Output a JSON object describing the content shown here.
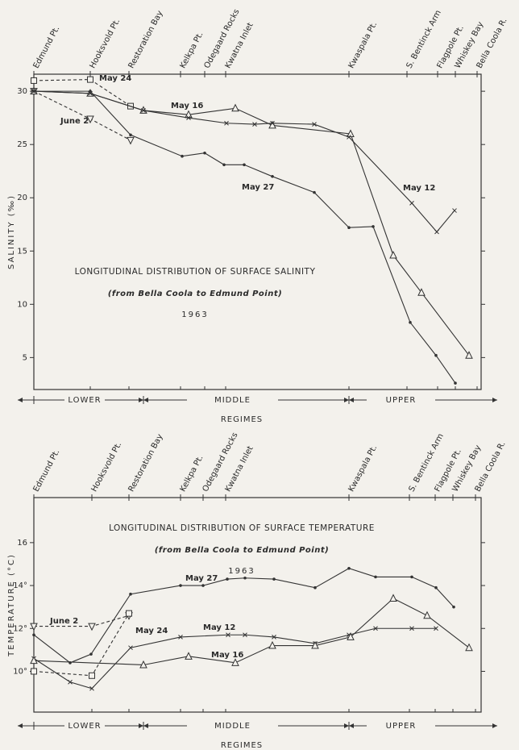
{
  "chart_data": [
    {
      "type": "line",
      "title": "LONGITUDINAL DISTRIBUTION OF SURFACE SALINITY",
      "subtitle": "(from Bella Coola to Edmund Point)",
      "annotation": "1963",
      "ylabel": "SALINITY (‰)",
      "regimes": [
        "LOWER",
        "MIDDLE",
        "UPPER"
      ],
      "regimes_label": "REGIMES",
      "xlim": [
        0,
        555
      ],
      "xticks": [
        {
          "value": 0,
          "label": "Edmund Pt."
        },
        {
          "value": 70,
          "label": "Hooksvold Pt."
        },
        {
          "value": 118,
          "label": "Restoration Bay"
        },
        {
          "value": 182,
          "label": "Kelkpa Pt."
        },
        {
          "value": 212,
          "label": "Odegaard Rocks"
        },
        {
          "value": 238,
          "label": "Kwatna Inlet"
        },
        {
          "value": 391,
          "label": "Kwaspala Pt."
        },
        {
          "value": 463,
          "label": "S. Bentinck Arm"
        },
        {
          "value": 501,
          "label": "Flagpole Pt."
        },
        {
          "value": 523,
          "label": "Whiskey Bay"
        },
        {
          "value": 550,
          "label": "Bella Coola R."
        }
      ],
      "ylim": [
        2,
        31.6
      ],
      "yticks": [
        5,
        10,
        15,
        20,
        25,
        30
      ],
      "series": [
        {
          "name": "May 24",
          "color": "#333333",
          "marker": "square",
          "dash": true,
          "x": [
            0,
            70,
            120
          ],
          "values": [
            31.0,
            31.1,
            28.6
          ]
        },
        {
          "name": "June 2",
          "color": "#333333",
          "marker": "triangle-down",
          "dash": true,
          "x": [
            0,
            70,
            120
          ],
          "values": [
            30.0,
            27.4,
            25.4
          ]
        },
        {
          "name": "May 16",
          "color": "#333333",
          "marker": "triangle",
          "dash": false,
          "x": [
            0,
            70,
            136,
            192,
            250,
            296,
            393,
            446,
            481,
            540
          ],
          "values": [
            30.0,
            29.8,
            28.2,
            27.8,
            28.4,
            26.8,
            26.0,
            14.6,
            11.1,
            5.2
          ]
        },
        {
          "name": "May 27",
          "color": "#333333",
          "marker": "dot",
          "dash": false,
          "x": [
            0,
            70,
            120,
            184,
            212,
            236,
            261,
            296,
            348,
            391,
            421,
            467,
            499,
            523
          ],
          "values": [
            30.0,
            30.0,
            25.9,
            23.9,
            24.2,
            23.1,
            23.1,
            22.0,
            20.5,
            17.2,
            17.3,
            8.3,
            5.2,
            2.6
          ]
        },
        {
          "name": "May 12",
          "color": "#333333",
          "marker": "x",
          "dash": false,
          "x": [
            0,
            70,
            136,
            192,
            239,
            274,
            296,
            348,
            391,
            469,
            500,
            522
          ],
          "values": [
            30.0,
            29.8,
            28.2,
            27.5,
            27.0,
            26.9,
            27.0,
            26.9,
            25.7,
            19.5,
            16.8,
            18.8
          ]
        }
      ]
    },
    {
      "type": "line",
      "title": "LONGITUDINAL DISTRIBUTION OF SURFACE TEMPERATURE",
      "subtitle": "(from Bella Coola to Edmund Point)",
      "annotation": "1963",
      "ylabel": "TEMPERATURE (°C)",
      "regimes": [
        "LOWER",
        "MIDDLE",
        "UPPER"
      ],
      "regimes_label": "REGIMES",
      "xlim": [
        0,
        555
      ],
      "xticks": [
        {
          "value": 0,
          "label": "Edmund Pt."
        },
        {
          "value": 72,
          "label": "Hooksvold Pt."
        },
        {
          "value": 118,
          "label": "Restoration Bay"
        },
        {
          "value": 182,
          "label": "Kelkpa Pt."
        },
        {
          "value": 210,
          "label": "Odegaard Rocks"
        },
        {
          "value": 238,
          "label": "Kwatna Inlet"
        },
        {
          "value": 391,
          "label": "Kwaspala Pt."
        },
        {
          "value": 466,
          "label": "S. Bentinck Arm"
        },
        {
          "value": 498,
          "label": "Flagpole Pt."
        },
        {
          "value": 520,
          "label": "Whiskey Bay"
        },
        {
          "value": 548,
          "label": "Bella Coola R."
        }
      ],
      "ylim": [
        8.1,
        18.1
      ],
      "yticks": [
        {
          "value": 10,
          "label": "10°"
        },
        {
          "value": 12,
          "label": "12°"
        },
        {
          "value": 14,
          "label": "14°"
        },
        16
      ],
      "series": [
        {
          "name": "May 27",
          "color": "#333333",
          "marker": "dot",
          "dash": false,
          "x": [
            0,
            45,
            71,
            120,
            182,
            210,
            240,
            262,
            298,
            349,
            391,
            424,
            469,
            499,
            521
          ],
          "values": [
            11.7,
            10.4,
            10.8,
            13.6,
            14.0,
            14.0,
            14.3,
            14.35,
            14.3,
            13.9,
            14.8,
            14.4,
            14.4,
            13.9,
            13.0
          ]
        },
        {
          "name": "June 2",
          "color": "#333333",
          "marker": "triangle-down",
          "dash": true,
          "x": [
            0,
            72,
            118
          ],
          "values": [
            12.1,
            12.1,
            12.6
          ]
        },
        {
          "name": "May 24",
          "color": "#333333",
          "marker": "square",
          "dash": true,
          "x": [
            0,
            72,
            118
          ],
          "values": [
            10.0,
            9.8,
            12.7
          ]
        },
        {
          "name": "May 12",
          "color": "#333333",
          "marker": "x",
          "dash": false,
          "x": [
            0,
            45,
            72,
            120,
            182,
            241,
            262,
            298,
            349,
            391,
            424,
            469,
            499
          ],
          "values": [
            10.6,
            9.5,
            9.2,
            11.1,
            11.6,
            11.7,
            11.7,
            11.6,
            11.3,
            11.7,
            12.0,
            12.0,
            12.0
          ]
        },
        {
          "name": "May 16",
          "color": "#333333",
          "marker": "triangle",
          "dash": false,
          "x": [
            0,
            136,
            192,
            250,
            296,
            349,
            393,
            446,
            488,
            540
          ],
          "values": [
            10.5,
            10.3,
            10.7,
            10.4,
            11.2,
            11.2,
            11.6,
            13.4,
            12.6,
            11.1
          ]
        }
      ]
    }
  ]
}
